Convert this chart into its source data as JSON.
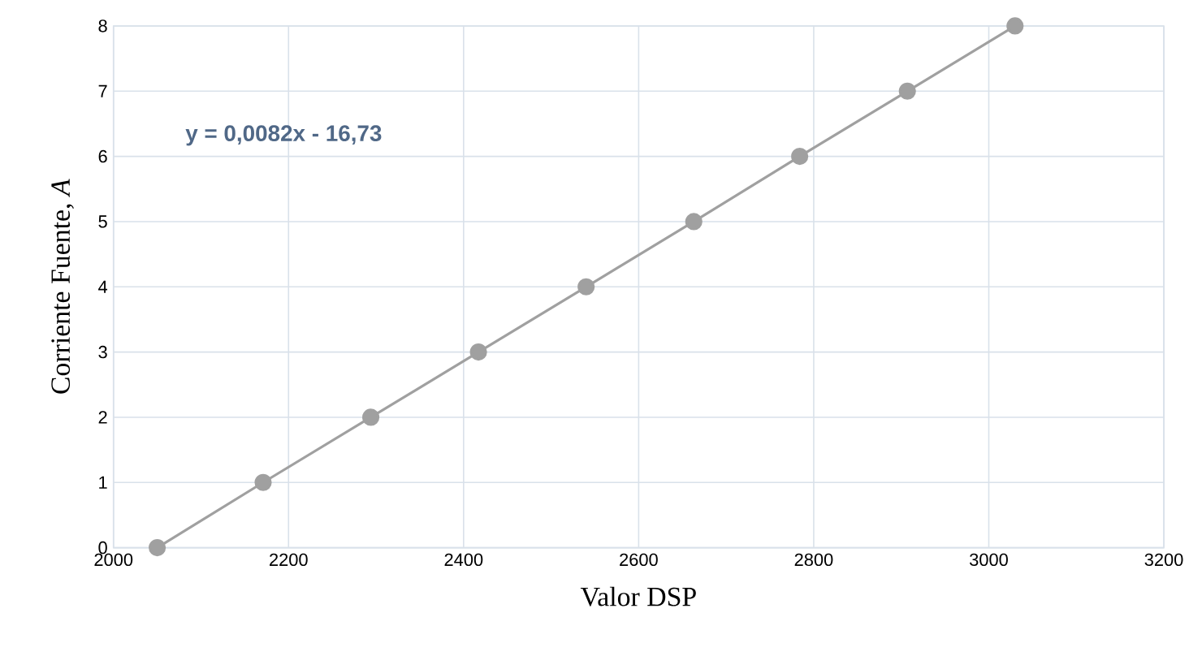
{
  "chart_data": {
    "type": "line",
    "xlabel": "Valor DSP",
    "ylabel": "Corriente Fuente, *A*",
    "x": [
      2050,
      2171,
      2294,
      2417,
      2540,
      2663,
      2784,
      2907,
      3030
    ],
    "series": [
      {
        "color": "#a0a0a0",
        "values": [
          0,
          1,
          2,
          3,
          4,
          5,
          6,
          7,
          8
        ]
      }
    ],
    "xlim": [
      2000,
      3200
    ],
    "xticks": [
      2000,
      2200,
      2400,
      2600,
      2800,
      3000,
      3200
    ],
    "ylim": [
      0,
      8
    ],
    "yticks": [
      0,
      1,
      2,
      3,
      4,
      5,
      6,
      7,
      8
    ],
    "grid": true,
    "marker": "circle",
    "line_style": "solid",
    "annotations": [
      "y = 0,0082x - 16,73"
    ]
  }
}
